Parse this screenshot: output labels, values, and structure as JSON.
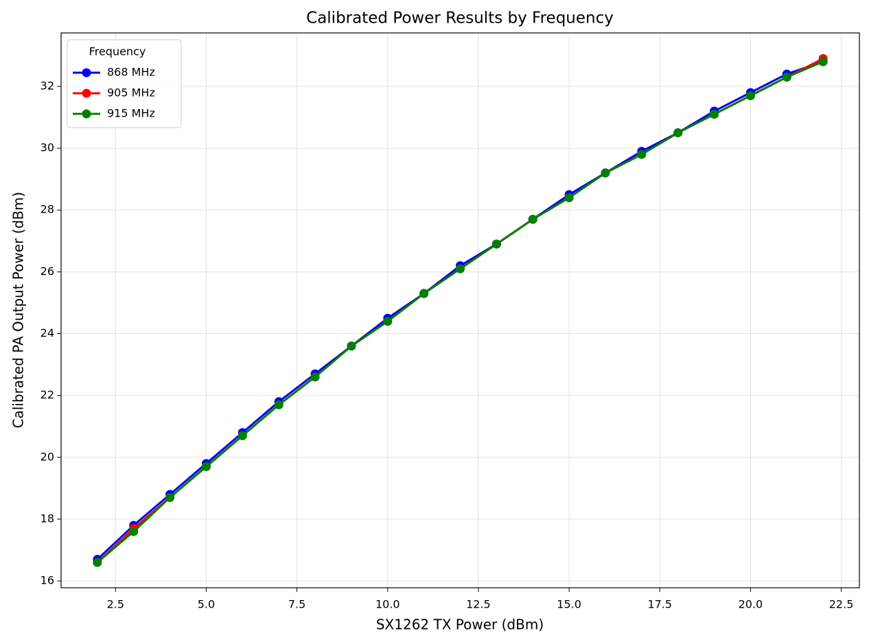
{
  "chart_data": {
    "type": "line",
    "title": "Calibrated Power Results by Frequency",
    "x_label": "SX1262 TX Power (dBm)",
    "y_label": "Calibrated PA Output Power (dBm)",
    "x": [
      2,
      3,
      4,
      5,
      6,
      7,
      8,
      9,
      10,
      11,
      12,
      13,
      14,
      15,
      16,
      17,
      18,
      19,
      20,
      21,
      22
    ],
    "series": [
      {
        "name": "868 MHz",
        "color": "#0000ff",
        "values": [
          16.7,
          17.8,
          18.8,
          19.8,
          20.8,
          21.8,
          22.7,
          23.6,
          24.5,
          25.3,
          26.2,
          26.9,
          27.7,
          28.5,
          29.2,
          29.9,
          30.5,
          31.2,
          31.8,
          32.4,
          32.8
        ]
      },
      {
        "name": "905 MHz",
        "color": "#ff0000",
        "values": [
          16.6,
          17.7,
          18.7,
          19.7,
          20.7,
          21.7,
          22.6,
          23.6,
          24.4,
          25.3,
          26.1,
          26.9,
          27.7,
          28.4,
          29.2,
          29.8,
          30.5,
          31.1,
          31.7,
          32.3,
          32.9
        ]
      },
      {
        "name": "915 MHz",
        "color": "#008000",
        "values": [
          16.6,
          17.6,
          18.7,
          19.7,
          20.7,
          21.7,
          22.6,
          23.6,
          24.4,
          25.3,
          26.1,
          26.9,
          27.7,
          28.4,
          29.2,
          29.8,
          30.5,
          31.1,
          31.7,
          32.3,
          32.8
        ]
      }
    ],
    "legend_title": "Frequency",
    "legend": "upper left",
    "grid": true,
    "xlim": [
      1.0,
      23.0
    ],
    "ylim": [
      15.78,
      33.73
    ],
    "xticks": [
      2.5,
      {
        "value": 5,
        "label": "5.0"
      },
      7.5,
      {
        "value": 10,
        "label": "10.0"
      },
      12.5,
      {
        "value": 15,
        "label": "15.0"
      },
      17.5,
      {
        "value": 20,
        "label": "20.0"
      },
      22.5
    ],
    "yticks": [
      16,
      18,
      20,
      22,
      24,
      26,
      28,
      30,
      32
    ]
  }
}
